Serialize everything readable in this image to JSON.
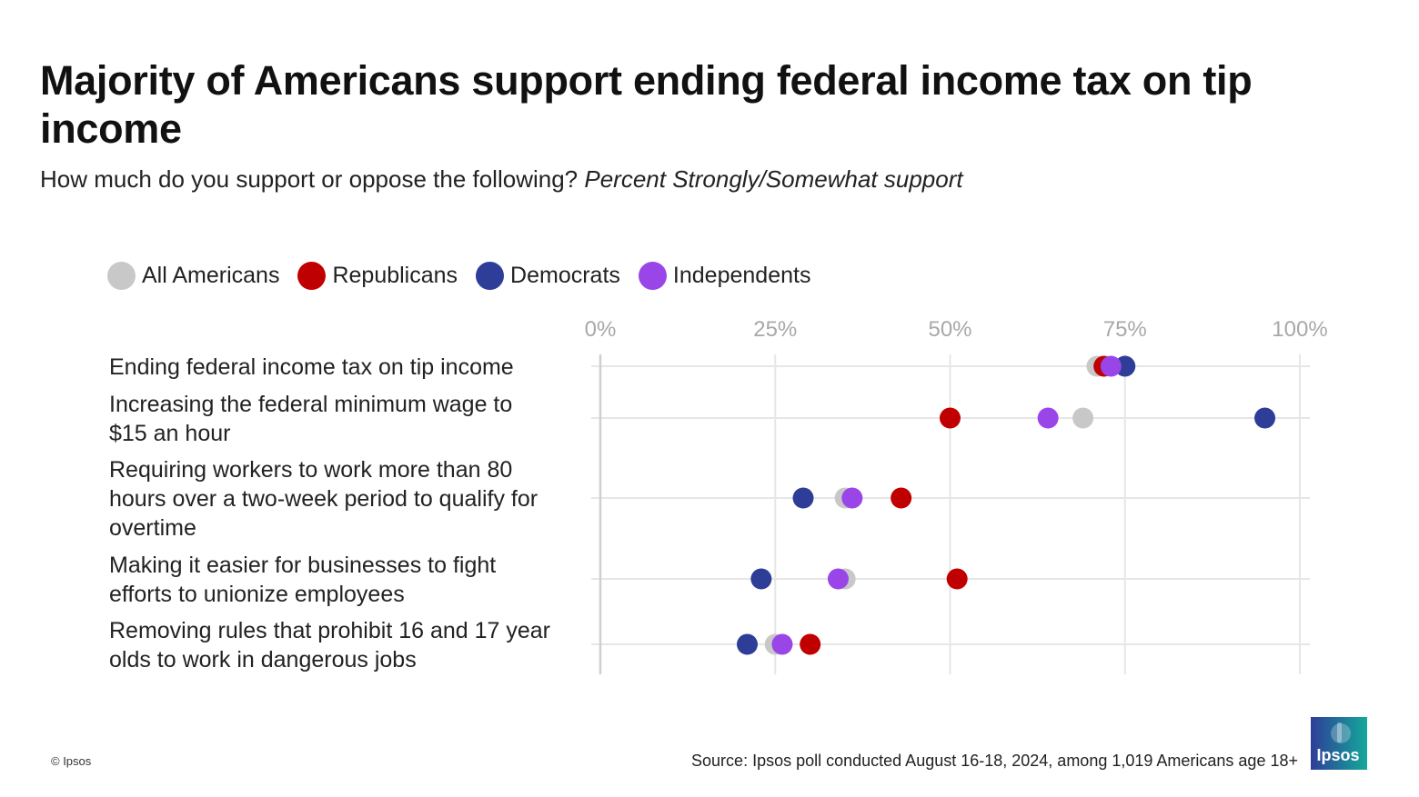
{
  "title": "Majority of Americans support ending federal income tax on tip income",
  "subtitle": {
    "question": "How much do you support or oppose the following?",
    "measure": "Percent Strongly/Somewhat support"
  },
  "colors": {
    "all_americans": "#c8c8c8",
    "republicans": "#c00000",
    "democrats": "#2e3d98",
    "independents": "#9945e8",
    "grid": "#e6e6e6",
    "tick_text": "#a8a8a8"
  },
  "chart_data": {
    "type": "scatter",
    "xlim": [
      0,
      100
    ],
    "x_ticks": [
      0,
      25,
      50,
      75,
      100
    ],
    "x_tick_labels": [
      "0%",
      "25%",
      "50%",
      "75%",
      "100%"
    ],
    "legend_position": "top-left",
    "grid": true,
    "categories": [
      [
        "Ending federal income tax on tip income"
      ],
      [
        "Increasing the federal minimum wage to",
        "$15 an hour"
      ],
      [
        "Requiring workers to work more than 80",
        "hours over a two-week period to qualify for",
        "overtime"
      ],
      [
        "Making it easier for businesses to fight",
        "efforts to unionize employees"
      ],
      [
        "Removing rules that prohibit 16 and 17 year",
        "olds to work in dangerous jobs"
      ]
    ],
    "series": [
      {
        "name": "All Americans",
        "color_key": "all_americans",
        "values": [
          71,
          69,
          35,
          35,
          25
        ]
      },
      {
        "name": "Republicans",
        "color_key": "republicans",
        "values": [
          72,
          50,
          43,
          51,
          30
        ]
      },
      {
        "name": "Democrats",
        "color_key": "democrats",
        "values": [
          75,
          95,
          29,
          23,
          21
        ]
      },
      {
        "name": "Independents",
        "color_key": "independents",
        "values": [
          73,
          64,
          36,
          34,
          26
        ]
      }
    ]
  },
  "footer": {
    "copyright": "© Ipsos",
    "source": "Source: Ipsos poll conducted August 16-18, 2024, among 1,019 Americans age 18+"
  },
  "logo": {
    "text": "Ipsos",
    "icon": "ipsos-logo-icon"
  }
}
